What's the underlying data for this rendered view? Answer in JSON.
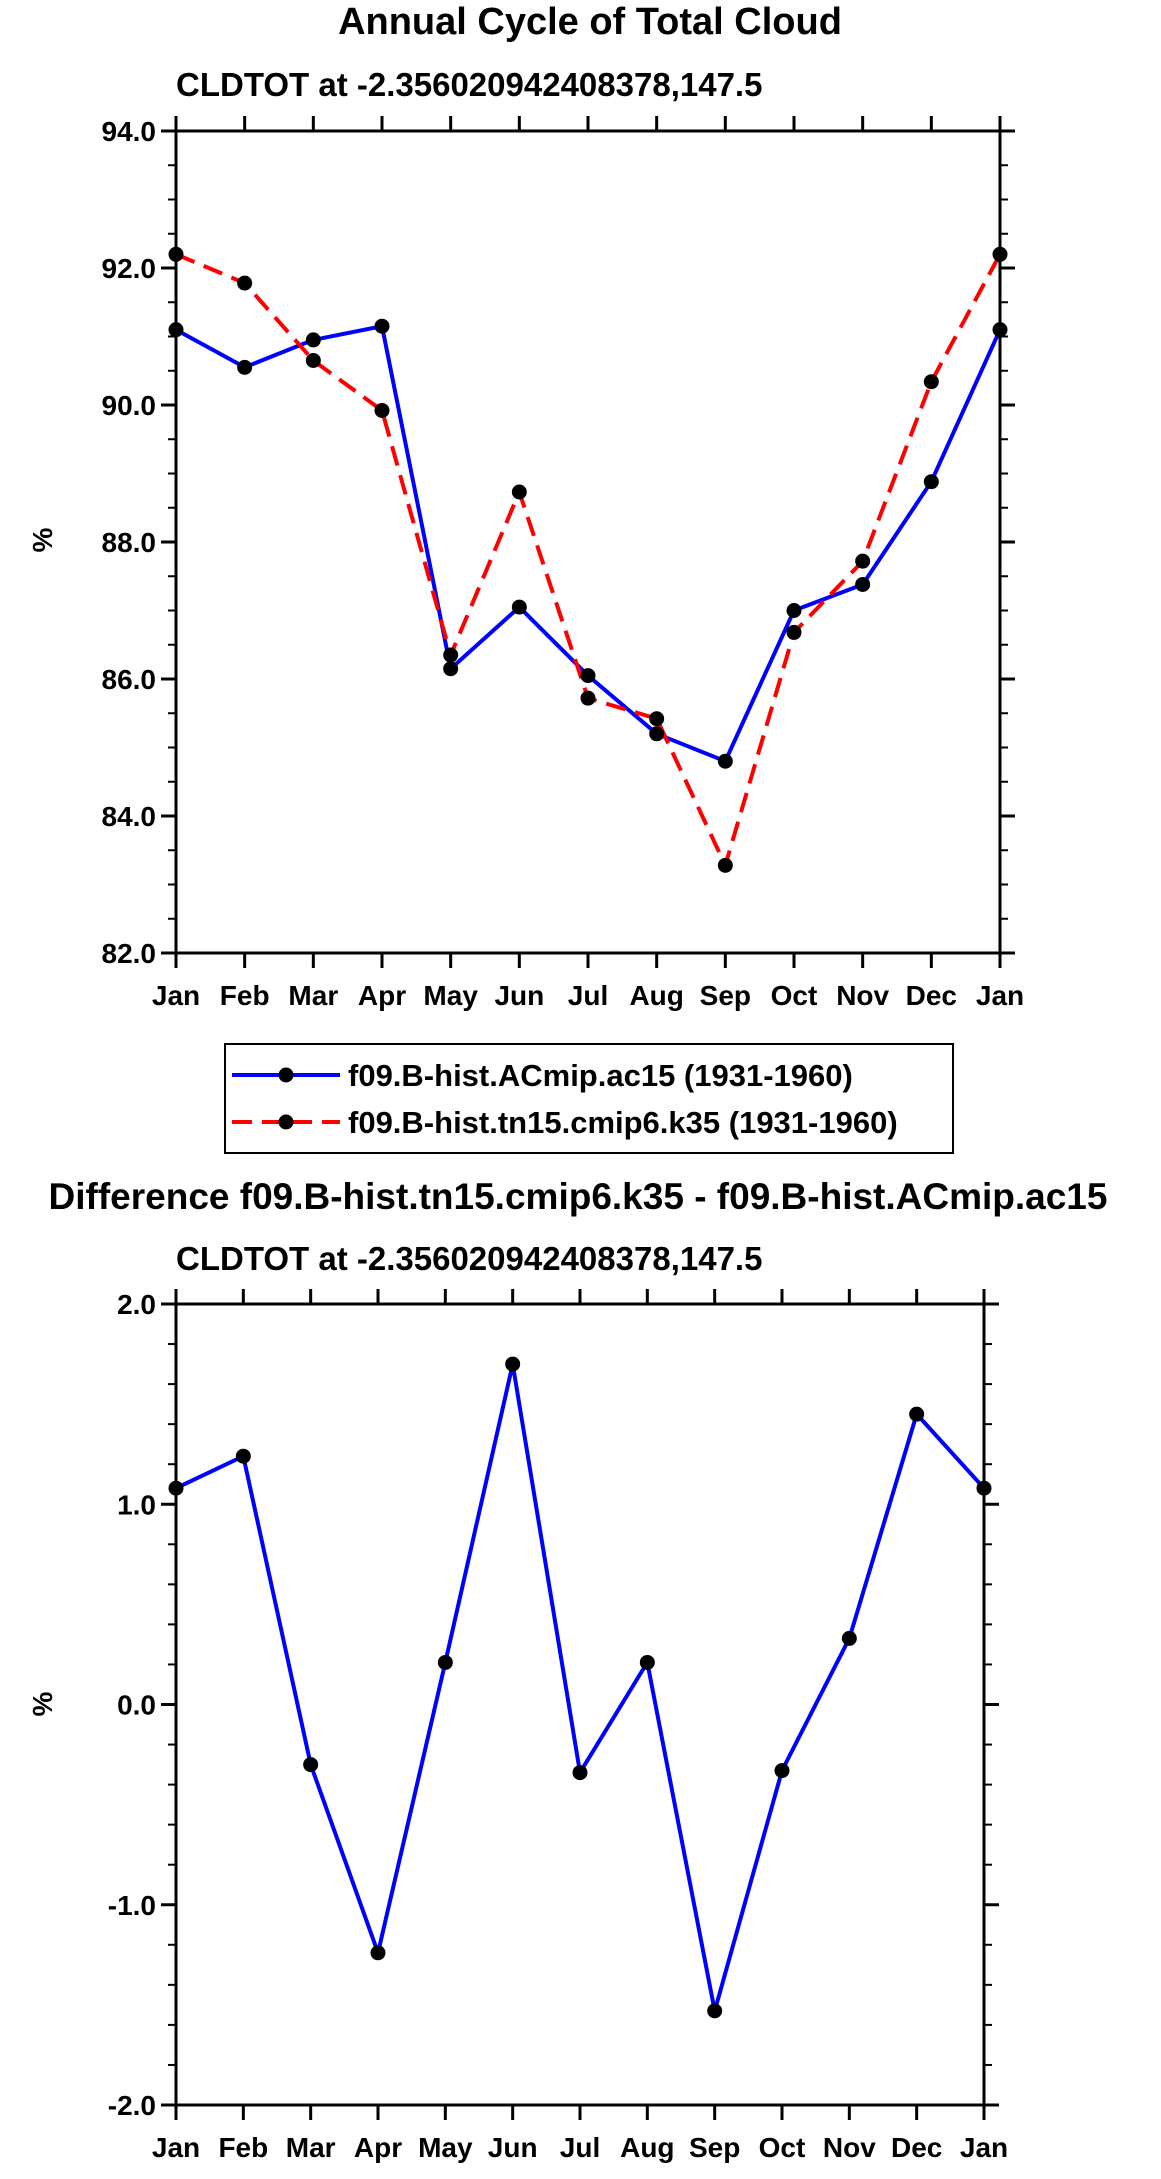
{
  "chart_data": [
    {
      "type": "line",
      "title": "Annual Cycle of Total Cloud",
      "subtitle": "CLDTOT at -2.356020942408378,147.5",
      "xlabel": "",
      "ylabel": "%",
      "categories": [
        "Jan",
        "Feb",
        "Mar",
        "Apr",
        "May",
        "Jun",
        "Jul",
        "Aug",
        "Sep",
        "Oct",
        "Nov",
        "Dec",
        "Jan"
      ],
      "ylim": [
        82.0,
        94.0
      ],
      "yticks": [
        "82.0",
        "84.0",
        "86.0",
        "88.0",
        "90.0",
        "92.0",
        "94.0"
      ],
      "series": [
        {
          "name": "f09.B-hist.ACmip.ac15 (1931-1960)",
          "color": "#0000ff",
          "dash": "solid",
          "values": [
            91.1,
            90.55,
            90.95,
            91.15,
            86.15,
            87.05,
            86.05,
            85.2,
            84.8,
            87.0,
            87.38,
            88.88,
            91.1
          ]
        },
        {
          "name": "f09.B-hist.tn15.cmip6.k35 (1931-1960)",
          "color": "#ff0000",
          "dash": "dashed",
          "values": [
            92.2,
            91.78,
            90.65,
            89.92,
            86.35,
            88.73,
            85.72,
            85.42,
            83.28,
            86.68,
            87.72,
            90.34,
            92.2
          ]
        }
      ],
      "legend": "bottom"
    },
    {
      "type": "line",
      "title": "Difference f09.B-hist.tn15.cmip6.k35 - f09.B-hist.ACmip.ac15",
      "subtitle": "CLDTOT at -2.356020942408378,147.5",
      "xlabel": "",
      "ylabel": "%",
      "categories": [
        "Jan",
        "Feb",
        "Mar",
        "Apr",
        "May",
        "Jun",
        "Jul",
        "Aug",
        "Sep",
        "Oct",
        "Nov",
        "Dec",
        "Jan"
      ],
      "ylim": [
        -2.0,
        2.0
      ],
      "yticks": [
        "-2.0",
        "-1.0",
        "0.0",
        "1.0",
        "2.0"
      ],
      "series": [
        {
          "name": "difference",
          "color": "#0000ff",
          "dash": "solid",
          "values": [
            1.08,
            1.24,
            -0.3,
            -1.24,
            0.21,
            1.7,
            -0.34,
            0.21,
            -1.53,
            -0.33,
            0.33,
            1.45,
            1.08
          ]
        }
      ]
    }
  ]
}
